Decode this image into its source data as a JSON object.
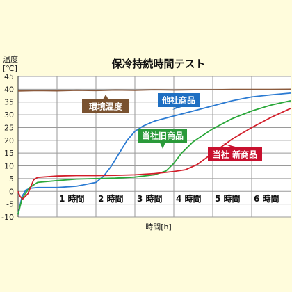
{
  "chart_data": {
    "type": "line",
    "title": "保冷持続時間テスト",
    "ylabel_line1": "温度",
    "ylabel_line2": "[℃]",
    "xlabel": "時間[h]",
    "xlim": [
      0,
      7
    ],
    "ylim": [
      -10,
      45
    ],
    "y_ticks": [
      45,
      40,
      35,
      30,
      25,
      20,
      15,
      10,
      5,
      0,
      -5,
      -10
    ],
    "x_ticks": [
      {
        "value": 1,
        "label": "1 時間"
      },
      {
        "value": 2,
        "label": "2 時間"
      },
      {
        "value": 3,
        "label": "3 時間"
      },
      {
        "value": 4,
        "label": "4 時間"
      },
      {
        "value": 5,
        "label": "5 時間"
      },
      {
        "value": 6,
        "label": "6 時間"
      }
    ],
    "grid": true,
    "series": [
      {
        "name": "環境温度",
        "color": "#8b5a3c",
        "label_bg": "#7a5230",
        "x": [
          0,
          0.5,
          1,
          1.5,
          2,
          2.5,
          3,
          3.5,
          4,
          4.5,
          5,
          5.5,
          6,
          6.5,
          7
        ],
        "y": [
          39.3,
          39.5,
          39.4,
          39.6,
          39.5,
          39.7,
          39.6,
          39.8,
          39.7,
          39.8,
          39.8,
          39.9,
          39.9,
          39.9,
          40
        ]
      },
      {
        "name": "他社商品",
        "color": "#2a7ad2",
        "label_bg": "#1f6fc2",
        "x": [
          0,
          0.1,
          0.2,
          0.3,
          0.5,
          1,
          1.5,
          2,
          2.2,
          2.4,
          2.6,
          2.8,
          3,
          3.2,
          3.5,
          4,
          4.5,
          5,
          5.5,
          6,
          6.5,
          7
        ],
        "y": [
          -9,
          -2,
          0.5,
          1.2,
          1.5,
          1.5,
          2,
          3.5,
          6,
          10,
          15,
          20,
          23.5,
          25.5,
          27.5,
          29.5,
          31.5,
          33.5,
          35.5,
          37,
          37.8,
          38.5
        ]
      },
      {
        "name": "当社旧商品",
        "color": "#2aa83a",
        "label_bg": "#2a9a3a",
        "x": [
          0,
          0.1,
          0.2,
          0.3,
          0.5,
          1,
          1.5,
          2,
          2.5,
          3,
          3.5,
          3.8,
          4,
          4.2,
          4.5,
          5,
          5.5,
          6,
          6.5,
          7
        ],
        "y": [
          -9,
          -3,
          -0.5,
          1.5,
          3.5,
          4.2,
          4.8,
          5,
          5.2,
          5.6,
          6.5,
          8,
          11,
          15,
          19.5,
          24.5,
          28.5,
          31.5,
          33.8,
          35.5
        ]
      },
      {
        "name": "当社 新商品",
        "color": "#d21e2a",
        "label_bg": "#c8102e",
        "x": [
          0,
          0.05,
          0.12,
          0.25,
          0.4,
          0.5,
          1,
          1.5,
          2,
          2.5,
          3,
          3.5,
          4,
          4.3,
          4.6,
          5,
          5.5,
          6,
          6.5,
          7
        ],
        "y": [
          0,
          -2,
          -3,
          -1,
          4.5,
          5.5,
          6,
          6.2,
          6.2,
          6.3,
          6.5,
          7,
          7.8,
          8.5,
          10.5,
          15,
          20.5,
          25,
          29,
          32.5
        ]
      }
    ]
  }
}
